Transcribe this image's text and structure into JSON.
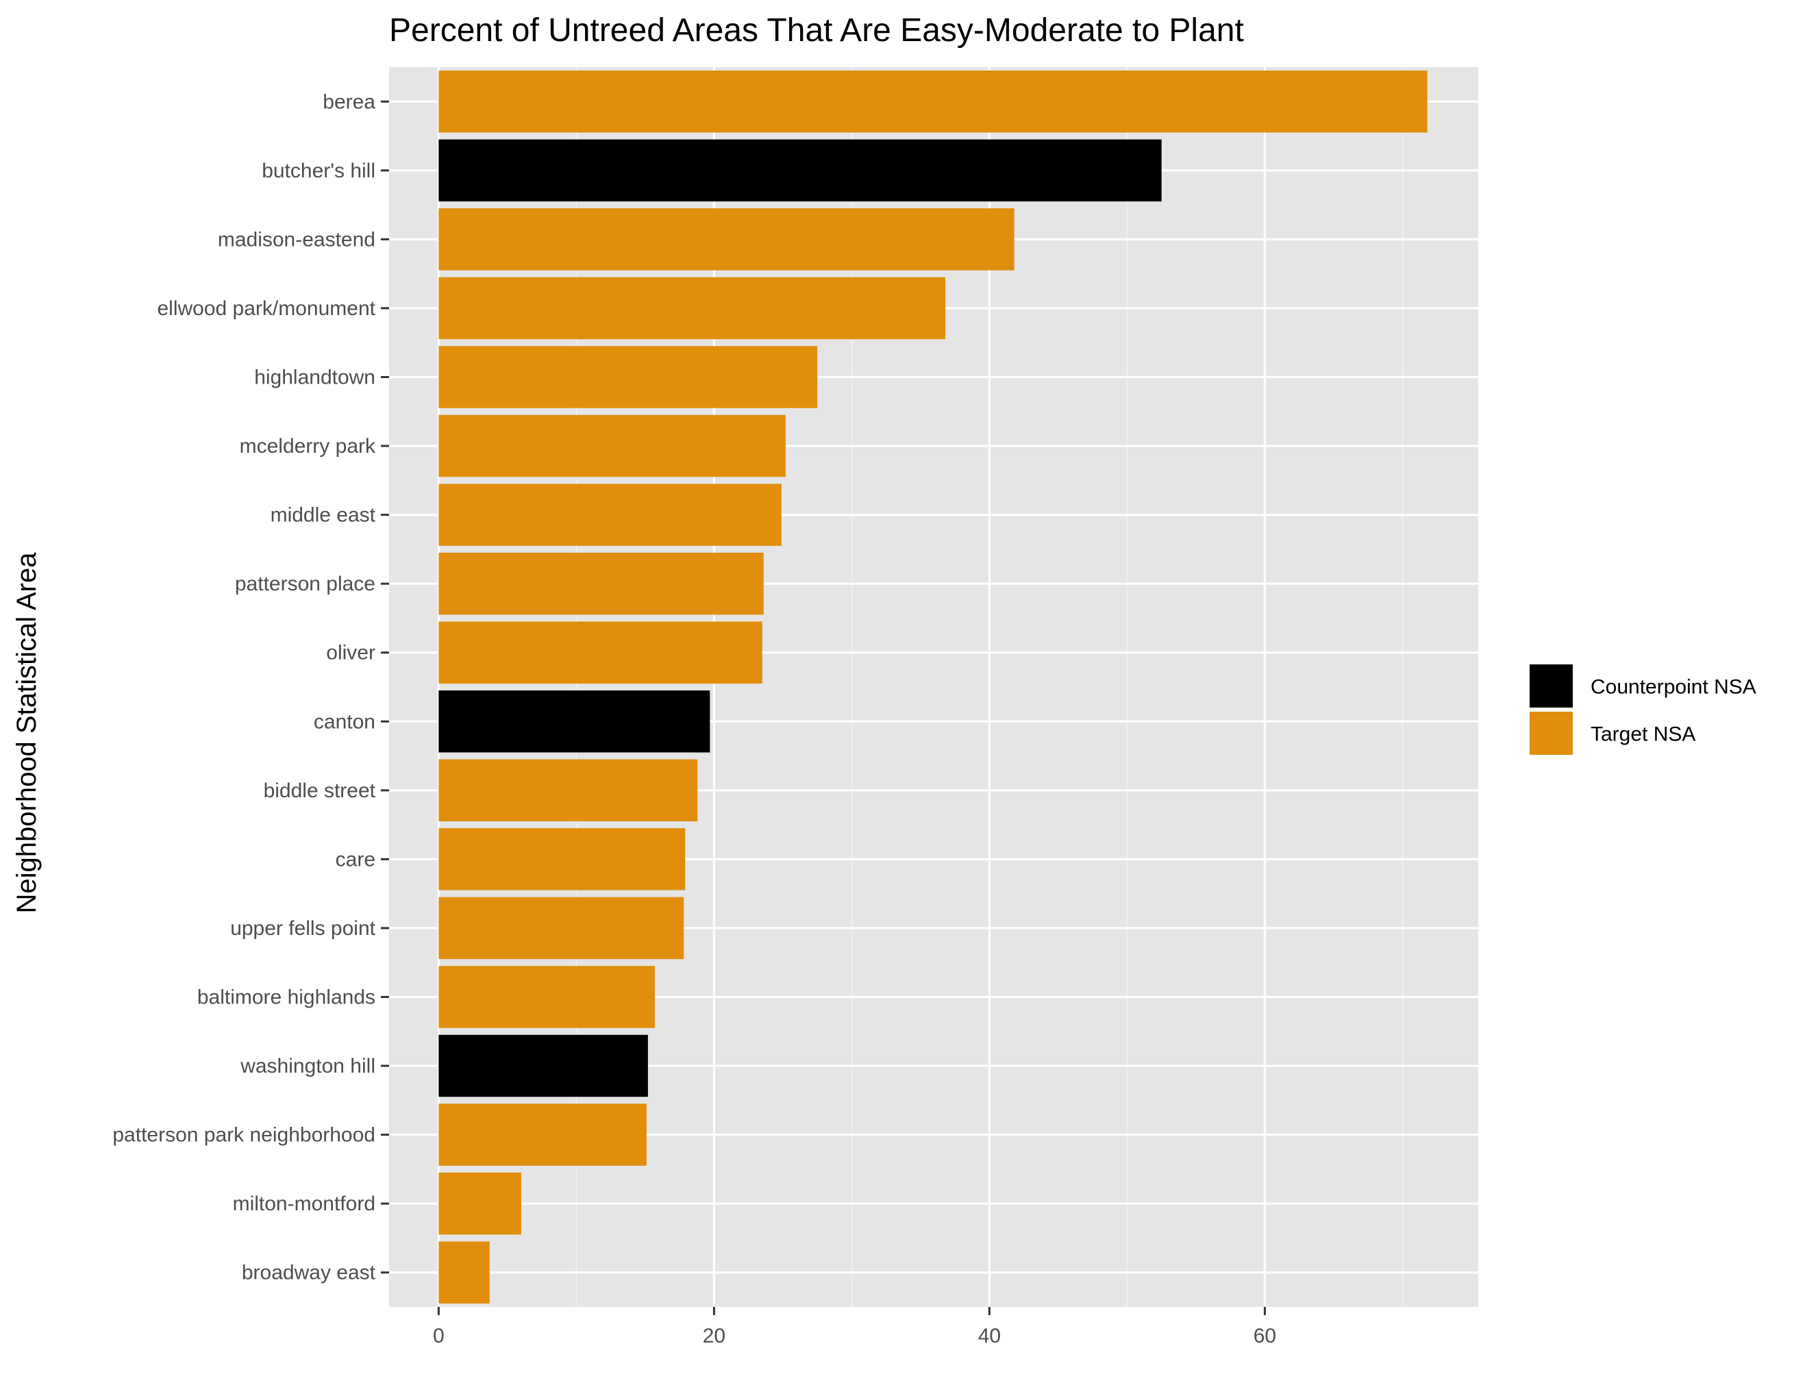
{
  "chart_data": {
    "type": "bar",
    "orientation": "horizontal",
    "title": "Percent of Untreed Areas That Are Easy-Moderate to Plant",
    "xlabel": "",
    "ylabel": "Neighborhood Statistical Area",
    "xlim": [
      -3.6,
      75.5
    ],
    "x_ticks": [
      0,
      20,
      40,
      60
    ],
    "x_tick_labels": [
      "0",
      "20",
      "40",
      "60"
    ],
    "grid": true,
    "legend_position": "right",
    "colors": {
      "Counterpoint NSA": "#000000",
      "Target NSA": "#E08E0B"
    },
    "legend": [
      {
        "label": "Counterpoint NSA",
        "color": "#000000"
      },
      {
        "label": "Target NSA",
        "color": "#E08E0B"
      }
    ],
    "bars": [
      {
        "category": "berea",
        "value": 71.8,
        "group": "Target NSA"
      },
      {
        "category": "butcher's hill",
        "value": 52.5,
        "group": "Counterpoint NSA"
      },
      {
        "category": "madison-eastend",
        "value": 41.8,
        "group": "Target NSA"
      },
      {
        "category": "ellwood park/monument",
        "value": 36.8,
        "group": "Target NSA"
      },
      {
        "category": "highlandtown",
        "value": 27.5,
        "group": "Target NSA"
      },
      {
        "category": "mcelderry park",
        "value": 25.2,
        "group": "Target NSA"
      },
      {
        "category": "middle east",
        "value": 24.9,
        "group": "Target NSA"
      },
      {
        "category": "patterson place",
        "value": 23.6,
        "group": "Target NSA"
      },
      {
        "category": "oliver",
        "value": 23.5,
        "group": "Target NSA"
      },
      {
        "category": "canton",
        "value": 19.7,
        "group": "Counterpoint NSA"
      },
      {
        "category": "biddle street",
        "value": 18.8,
        "group": "Target NSA"
      },
      {
        "category": "care",
        "value": 17.9,
        "group": "Target NSA"
      },
      {
        "category": "upper fells point",
        "value": 17.8,
        "group": "Target NSA"
      },
      {
        "category": "baltimore highlands",
        "value": 15.7,
        "group": "Target NSA"
      },
      {
        "category": "washington hill",
        "value": 15.2,
        "group": "Counterpoint NSA"
      },
      {
        "category": "patterson park neighborhood",
        "value": 15.1,
        "group": "Target NSA"
      },
      {
        "category": "milton-montford",
        "value": 6.0,
        "group": "Target NSA"
      },
      {
        "category": "broadway east",
        "value": 3.7,
        "group": "Target NSA"
      }
    ]
  }
}
